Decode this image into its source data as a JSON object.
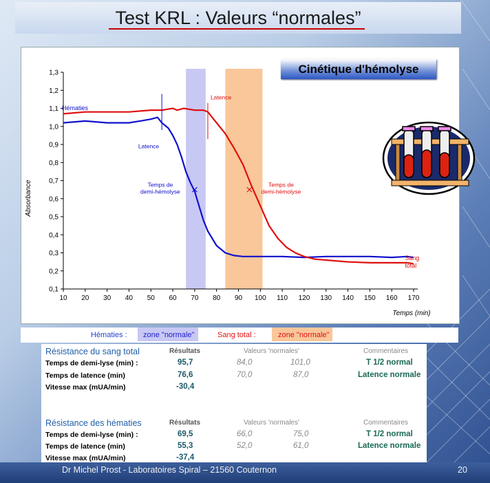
{
  "slide": {
    "title": "Test KRL : Valeurs “normales”",
    "footer": "Dr Michel Prost - Laboratoires Spiral – 21560 Couternon",
    "page_number": "20"
  },
  "chart_data": {
    "type": "line",
    "title": "Cinétique d'hémolyse",
    "xlabel": "Temps (min)",
    "ylabel": "Absorbance",
    "xlim": [
      10,
      170
    ],
    "ylim": [
      0.1,
      1.3
    ],
    "x_ticks": [
      "10",
      "20",
      "30",
      "40",
      "50",
      "60",
      "70",
      "80",
      "90",
      "100",
      "110",
      "120",
      "130",
      "140",
      "150",
      "160",
      "170"
    ],
    "y_ticks": [
      "0,1",
      "0,2",
      "0,3",
      "0,4",
      "0,5",
      "0,6",
      "0,7",
      "0,8",
      "0,9",
      "1,0",
      "1,1",
      "1,2",
      "1,3"
    ],
    "series": [
      {
        "name": "Hématies",
        "color": "#1010cc",
        "x": [
          10,
          20,
          30,
          40,
          45,
          50,
          53,
          55,
          58,
          60,
          62,
          64,
          66,
          68,
          70,
          72,
          74,
          76,
          78,
          80,
          84,
          88,
          92,
          100,
          110,
          120,
          130,
          140,
          150,
          160,
          167,
          170
        ],
        "y": [
          1.02,
          1.03,
          1.02,
          1.02,
          1.03,
          1.04,
          1.05,
          1.02,
          0.99,
          0.95,
          0.9,
          0.83,
          0.75,
          0.69,
          0.64,
          0.56,
          0.48,
          0.42,
          0.38,
          0.34,
          0.3,
          0.285,
          0.28,
          0.28,
          0.28,
          0.275,
          0.28,
          0.28,
          0.28,
          0.275,
          0.28,
          0.275
        ]
      },
      {
        "name": "Sang total",
        "color": "#e01010",
        "x": [
          10,
          20,
          30,
          40,
          50,
          55,
          60,
          62,
          65,
          70,
          74,
          76,
          78,
          80,
          84,
          88,
          92,
          96,
          100,
          104,
          108,
          112,
          116,
          120,
          125,
          130,
          140,
          150,
          160,
          167,
          170
        ],
        "y": [
          1.07,
          1.08,
          1.08,
          1.08,
          1.09,
          1.09,
          1.1,
          1.09,
          1.1,
          1.09,
          1.09,
          1.08,
          1.05,
          1.02,
          0.96,
          0.88,
          0.79,
          0.67,
          0.56,
          0.45,
          0.38,
          0.33,
          0.3,
          0.28,
          0.265,
          0.26,
          0.25,
          0.245,
          0.245,
          0.245,
          0.24
        ]
      }
    ],
    "zones": [
      {
        "name": "Hématies zone \"normale\"",
        "x_start": 66,
        "x_end": 75,
        "color": "#c8c8f4"
      },
      {
        "name": "Sang total zone \"normale\"",
        "x_start": 84,
        "x_end": 101,
        "color": "#f9c79a"
      }
    ],
    "annotations": [
      {
        "series": "Hématies",
        "text": "Hématies",
        "x": 10,
        "y": 1.09
      },
      {
        "series": "Sang total",
        "text_lines": [
          "Sang",
          "total"
        ],
        "x": 166,
        "y": 0.26
      },
      {
        "series": "Hématies",
        "type": "latence",
        "text": "Latence",
        "x": 55,
        "y_top": 1.18,
        "y_bottom": 0.98,
        "label_y": 0.88
      },
      {
        "series": "Sang total",
        "type": "latence",
        "text": "Latence",
        "x": 76,
        "y_top": 1.13,
        "y_bottom": 0.93,
        "label_y": 1.15
      },
      {
        "series": "Hématies",
        "type": "demi-lyse",
        "text_lines": [
          "Temps de",
          "demi-hémolyse"
        ],
        "x": 70,
        "y": 0.65
      },
      {
        "series": "Sang total",
        "type": "demi-lyse",
        "text_lines": [
          "Temps de",
          "demi-hémolyse"
        ],
        "x": 95,
        "y": 0.65
      }
    ]
  },
  "legend": {
    "hematies_label": "Hématies :",
    "hematies_zone": "zone \"normale\"",
    "sang_label": "Sang total :",
    "sang_zone": "zone \"normale\""
  },
  "tables": [
    {
      "section": "Résistance du sang total",
      "col_results": "Résultats",
      "col_normals": "Valeurs 'normales'",
      "col_comments": "Commentaires",
      "rows": [
        {
          "label": "Temps de demi-lyse (min) :",
          "result": "95,7",
          "min": "84,0",
          "max": "101,0",
          "comment": "T 1/2 normal"
        },
        {
          "label": "Temps de latence (min)",
          "result": "76,6",
          "min": "70,0",
          "max": "87,0",
          "comment": "Latence normale"
        },
        {
          "label": "Vitesse max (mUA/min)",
          "result": "-30,4",
          "min": "",
          "max": "",
          "comment": ""
        }
      ]
    },
    {
      "section": "Résistance des hématies",
      "col_results": "Résultats",
      "col_normals": "Valeurs 'normales'",
      "col_comments": "Commentaires",
      "rows": [
        {
          "label": "Temps de demi-lyse (min) :",
          "result": "69,5",
          "min": "66,0",
          "max": "75,0",
          "comment": "T 1/2 normal"
        },
        {
          "label": "Temps de latence (min)",
          "result": "55,3",
          "min": "52,0",
          "max": "61,0",
          "comment": "Latence normale"
        },
        {
          "label": "Vitesse max (mUA/min)",
          "result": "-37,4",
          "min": "",
          "max": "",
          "comment": ""
        }
      ]
    }
  ],
  "clipart": {
    "icon": "test-tubes-icon"
  }
}
